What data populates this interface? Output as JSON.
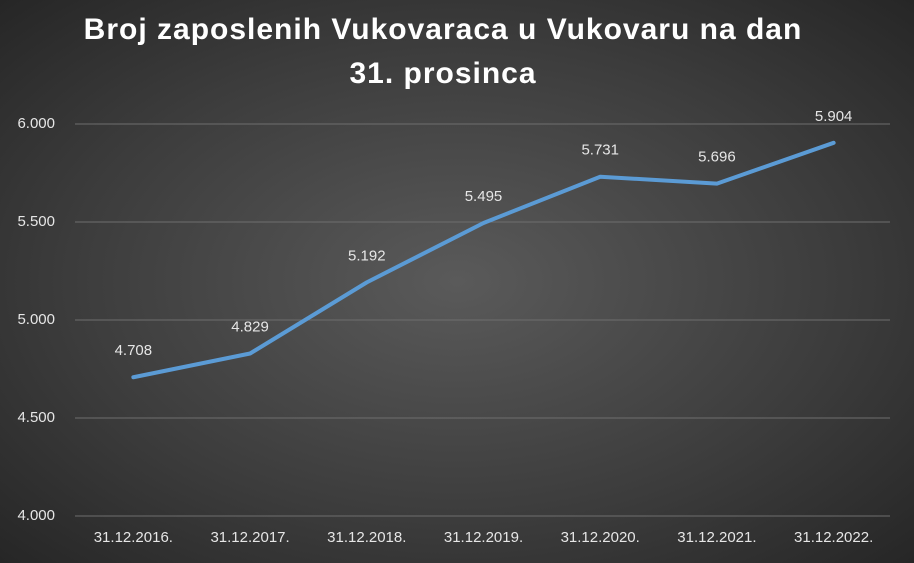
{
  "chart_data": {
    "type": "line",
    "title": "Broj zaposlenih Vukovaraca u Vukovaru na dan 31. prosinca",
    "categories": [
      "31.12.2016.",
      "31.12.2017.",
      "31.12.2018.",
      "31.12.2019.",
      "31.12.2020.",
      "31.12.2021.",
      "31.12.2022."
    ],
    "values": [
      4708,
      4829,
      5192,
      5495,
      5731,
      5696,
      5904
    ],
    "value_labels": [
      "4.708",
      "4.829",
      "5.192",
      "5.495",
      "5.731",
      "5.696",
      "5.904"
    ],
    "color": "#5b9bd5",
    "ylim": [
      4000,
      6000
    ],
    "yticks": [
      {
        "value": 4000,
        "label": "4.000"
      },
      {
        "value": 4500,
        "label": "4.500"
      },
      {
        "value": 5000,
        "label": "5.000"
      },
      {
        "value": 5500,
        "label": "5.500"
      },
      {
        "value": 6000,
        "label": "6.000"
      }
    ],
    "grid": true
  }
}
